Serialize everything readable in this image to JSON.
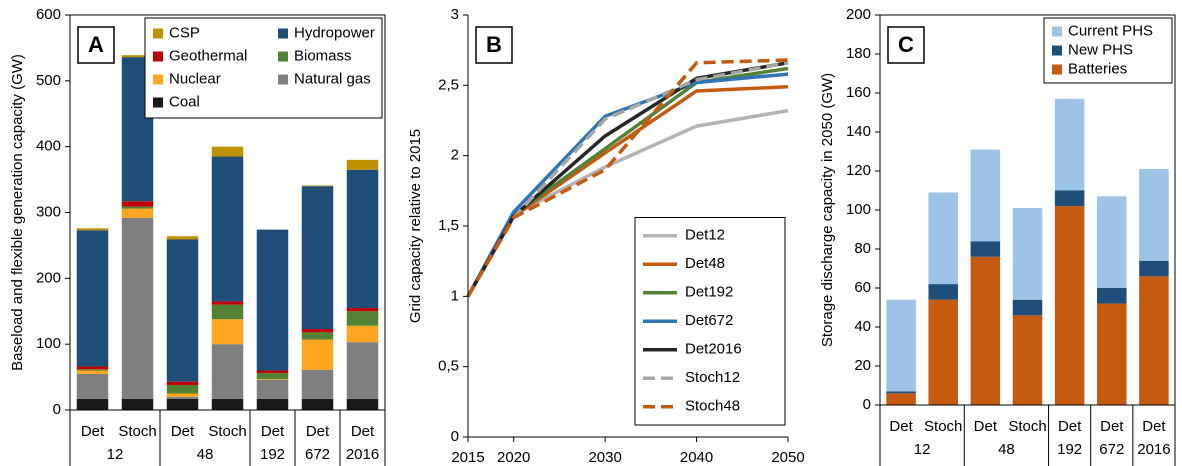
{
  "chart_data": [
    {
      "type": "bar",
      "stacked": true,
      "label": "A",
      "y_label": "Baseload and flexible generation capacity (GW)",
      "categories": [
        "Det",
        "Stoch",
        "Det",
        "Stoch",
        "Det",
        "Det",
        "Det"
      ],
      "groups": [
        {
          "name": "12",
          "size": 2
        },
        {
          "name": "48",
          "size": 2
        },
        {
          "name": "192",
          "size": 1
        },
        {
          "name": "672",
          "size": 1
        },
        {
          "name": "2016",
          "size": 1
        }
      ],
      "series": [
        {
          "name": "CSP",
          "color": "#bf9000",
          "values": [
            3,
            3,
            5,
            15,
            0,
            1,
            15
          ]
        },
        {
          "name": "Hydropower",
          "color": "#1f4e79",
          "values": [
            207,
            219,
            216,
            220,
            214,
            217,
            210
          ]
        },
        {
          "name": "Geothermal",
          "color": "#c00000",
          "values": [
            4,
            8,
            5,
            5,
            4,
            5,
            5
          ]
        },
        {
          "name": "Biomass",
          "color": "#548235",
          "values": [
            2,
            3,
            13,
            22,
            9,
            11,
            22
          ]
        },
        {
          "name": "Nuclear",
          "color": "#ffa51f",
          "values": [
            5,
            14,
            5,
            38,
            1,
            46,
            25
          ]
        },
        {
          "name": "Natural gas",
          "color": "#7f7f7f",
          "values": [
            38,
            275,
            3,
            83,
            29,
            44,
            86
          ]
        },
        {
          "name": "Coal",
          "color": "#1a1a1a",
          "values": [
            17,
            17,
            17,
            17,
            17,
            17,
            17
          ]
        }
      ],
      "ylim": [
        0,
        600
      ],
      "yticks": [
        0,
        100,
        200,
        300,
        400,
        500,
        600
      ],
      "legend": "upper right",
      "legend_columns": 2
    },
    {
      "type": "line",
      "label": "B",
      "y_label": "Grid capacity relative to 2015",
      "x": [
        2015,
        2020,
        2030,
        2040,
        2050
      ],
      "series": [
        {
          "name": "Det12",
          "color": "#b4b4b4",
          "dashed": false,
          "values": [
            1,
            1.58,
            1.92,
            2.21,
            2.32
          ]
        },
        {
          "name": "Det48",
          "color": "#c55a11",
          "dashed": false,
          "values": [
            1,
            1.57,
            2.02,
            2.46,
            2.49
          ]
        },
        {
          "name": "Det192",
          "color": "#548235",
          "dashed": false,
          "values": [
            1,
            1.58,
            2.05,
            2.52,
            2.62
          ]
        },
        {
          "name": "Det672",
          "color": "#2e75b6",
          "dashed": false,
          "values": [
            1,
            1.6,
            2.28,
            2.52,
            2.58
          ]
        },
        {
          "name": "Det2016",
          "color": "#262626",
          "dashed": false,
          "values": [
            1,
            1.57,
            2.14,
            2.55,
            2.66
          ]
        },
        {
          "name": "Stoch12",
          "color": "#a6a6a6",
          "dashed": true,
          "values": [
            1,
            1.56,
            2.26,
            2.54,
            2.66
          ]
        },
        {
          "name": "Stoch48",
          "color": "#c55a11",
          "dashed": true,
          "values": [
            1,
            1.56,
            1.9,
            2.66,
            2.68
          ]
        }
      ],
      "xlim": [
        2015,
        2050
      ],
      "xticks": [
        2015,
        2020,
        2030,
        2040,
        2050
      ],
      "ylim": [
        0,
        3
      ],
      "yticks": [
        0,
        {
          "value": 0.5,
          "label": "0,5"
        },
        1,
        {
          "value": 1.5,
          "label": "1,5"
        },
        2,
        {
          "value": 2.5,
          "label": "2,5"
        },
        3
      ],
      "legend": "lower right",
      "legend_columns": 1
    },
    {
      "type": "bar",
      "stacked": true,
      "label": "C",
      "y_label": "Storage discharge capacity in 2050 (GW)",
      "categories": [
        "Det",
        "Stoch",
        "Det",
        "Stoch",
        "Det",
        "Det",
        "Det"
      ],
      "groups": [
        {
          "name": "12",
          "size": 2
        },
        {
          "name": "48",
          "size": 2
        },
        {
          "name": "192",
          "size": 1
        },
        {
          "name": "672",
          "size": 1
        },
        {
          "name": "2016",
          "size": 1
        }
      ],
      "series": [
        {
          "name": "Current PHS",
          "color": "#9dc3e6",
          "values": [
            47,
            47,
            47,
            47,
            47,
            47,
            47
          ]
        },
        {
          "name": "New PHS",
          "color": "#1f4e79",
          "values": [
            1,
            8,
            8,
            8,
            8,
            8,
            8
          ]
        },
        {
          "name": "Batteries",
          "color": "#c55a11",
          "values": [
            6,
            54,
            76,
            46,
            102,
            52,
            66
          ]
        }
      ],
      "ylim": [
        0,
        200
      ],
      "yticks": [
        0,
        20,
        40,
        60,
        80,
        100,
        120,
        140,
        160,
        180,
        200
      ],
      "legend": "upper right",
      "legend_columns": 1
    }
  ]
}
